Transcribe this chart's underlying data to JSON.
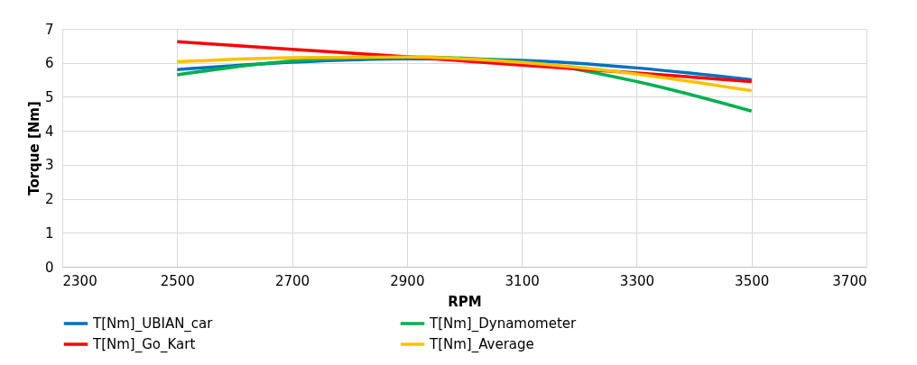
{
  "chart_data": {
    "type": "line",
    "xlabel": "RPM",
    "ylabel": "Torque [Nm]",
    "x": [
      2500,
      2700,
      2900,
      3100,
      3300,
      3500
    ],
    "series": [
      {
        "name": "T[Nm]_UBIAN_car",
        "color": "#0070c0",
        "values": [
          5.8,
          6.02,
          6.12,
          6.07,
          5.85,
          5.5
        ]
      },
      {
        "name": "T[Nm]_Dynamometer",
        "color": "#00b050",
        "values": [
          5.65,
          6.05,
          6.17,
          6.03,
          5.45,
          4.58
        ]
      },
      {
        "name": "T[Nm]_Go_Kart",
        "color": "#ff0000",
        "values": [
          6.62,
          6.4,
          6.18,
          5.93,
          5.7,
          5.45
        ]
      },
      {
        "name": "T[Nm]_Average",
        "color": "#ffc000",
        "values": [
          6.03,
          6.15,
          6.17,
          6.01,
          5.67,
          5.18
        ]
      }
    ],
    "xlim": [
      2300,
      3700
    ],
    "xticks": [
      2300,
      2500,
      2700,
      2900,
      3100,
      3300,
      3500,
      3700
    ],
    "ylim": [
      0,
      7
    ],
    "yticks": [
      0,
      1,
      2,
      3,
      4,
      5,
      6,
      7
    ],
    "grid": true,
    "legend": "bottom",
    "marker": "none",
    "line_style": "solid"
  }
}
